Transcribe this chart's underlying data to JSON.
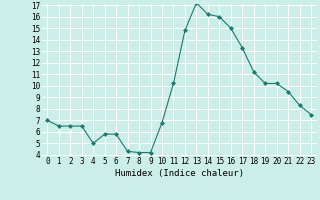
{
  "x": [
    0,
    1,
    2,
    3,
    4,
    5,
    6,
    7,
    8,
    9,
    10,
    11,
    12,
    13,
    14,
    15,
    16,
    17,
    18,
    19,
    20,
    21,
    22,
    23
  ],
  "y": [
    7.0,
    6.5,
    6.5,
    6.5,
    5.0,
    5.8,
    5.8,
    4.3,
    4.2,
    4.2,
    6.8,
    10.2,
    14.8,
    17.2,
    16.2,
    16.0,
    15.0,
    13.3,
    11.2,
    10.2,
    10.2,
    9.5,
    8.3,
    7.5
  ],
  "line_color": "#1a7a6e",
  "marker": "D",
  "marker_size": 2.0,
  "background_color": "#cceee8",
  "grid_color": "#ffffff",
  "xlabel": "Humidex (Indice chaleur)",
  "ylim": [
    4,
    17
  ],
  "xlim": [
    -0.5,
    23.5
  ],
  "yticks": [
    4,
    5,
    6,
    7,
    8,
    9,
    10,
    11,
    12,
    13,
    14,
    15,
    16,
    17
  ],
  "xticks": [
    0,
    1,
    2,
    3,
    4,
    5,
    6,
    7,
    8,
    9,
    10,
    11,
    12,
    13,
    14,
    15,
    16,
    17,
    18,
    19,
    20,
    21,
    22,
    23
  ],
  "tick_fontsize": 5.5,
  "xlabel_fontsize": 6.5
}
